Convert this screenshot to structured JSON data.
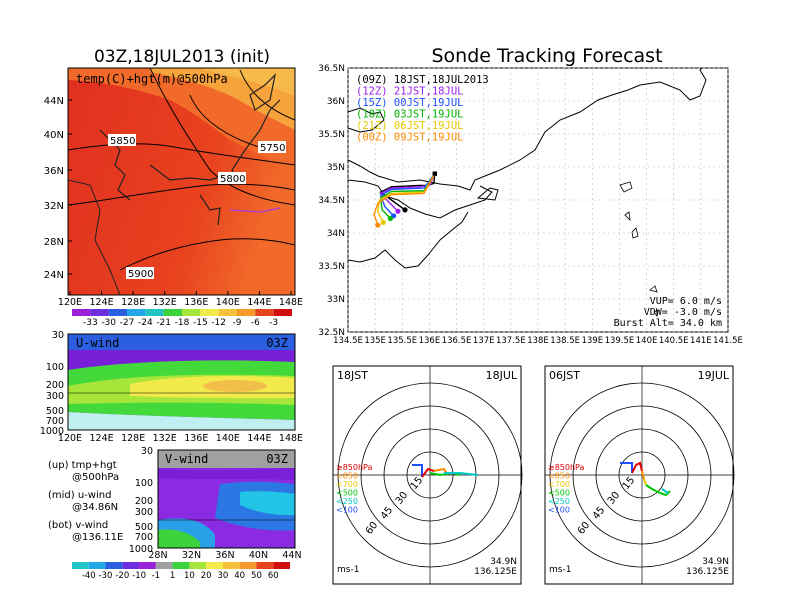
{
  "main_title": "Sonde Tracking Forecast",
  "left_title": "03Z,18JUL2013 (init)",
  "colors": {
    "land_hot": "#e8321e",
    "warm": "#f26a2a",
    "orange": "#f5a33a",
    "blue_top": "#2b5fe0",
    "purple": "#8a2be2",
    "cyan": "#22c4e6",
    "green": "#3cd23c"
  },
  "panel_a": {
    "label": "temp(C)+hgt(m)@500hPa",
    "contours": [
      "5850",
      "5750",
      "5800",
      "5900"
    ],
    "yticks": [
      "44N",
      "40N",
      "36N",
      "32N",
      "28N",
      "24N"
    ],
    "xticks": [
      "120E",
      "124E",
      "128E",
      "132E",
      "136E",
      "140E",
      "144E",
      "148E"
    ],
    "colorbar": [
      "-33",
      "-30",
      "-27",
      "-24",
      "-21",
      "-18",
      "-15",
      "-12",
      "-9",
      "-6",
      "-3"
    ]
  },
  "panel_u": {
    "label": "U-wind",
    "time": "03Z",
    "yticks": [
      "30",
      "100",
      "200",
      "300",
      "500",
      "700",
      "1000"
    ],
    "xticks": [
      "120E",
      "124E",
      "128E",
      "132E",
      "136E",
      "140E",
      "144E",
      "148E"
    ]
  },
  "panel_v": {
    "label": "V-wind",
    "time": "03Z",
    "yticks": [
      "30",
      "100",
      "200",
      "300",
      "500",
      "700",
      "1000"
    ],
    "xticks": [
      "28N",
      "32N",
      "36N",
      "40N",
      "44N"
    ],
    "colorbar": [
      "-40",
      "-30",
      "-20",
      "-10",
      "-1",
      "1",
      "10",
      "20",
      "30",
      "40",
      "50",
      "60"
    ]
  },
  "legend_notes": [
    [
      "(up) tmp+hgt",
      "@500hPa"
    ],
    [
      "(mid) u-wind",
      "@34.86N"
    ],
    [
      "(bot) v-wind",
      "@136.11E"
    ]
  ],
  "tracking": {
    "legend": [
      {
        "text": "(09Z)  18JST,18JUL2013",
        "color": "#000000"
      },
      {
        "text": "(12Z)  21JST,18JUL",
        "color": "#a020f0"
      },
      {
        "text": "(15Z)  00JST,19JUL",
        "color": "#1e50ff"
      },
      {
        "text": "(18Z)  03JST,19JUL",
        "color": "#00b400"
      },
      {
        "text": "(21Z)  06JST,19JUL",
        "color": "#e6c800"
      },
      {
        "text": "(00Z)  09JST,19JUL",
        "color": "#ff8c00"
      }
    ],
    "yticks": [
      "36.5N",
      "36N",
      "35.5N",
      "35N",
      "34.5N",
      "34N",
      "33.5N",
      "33N",
      "32.5N"
    ],
    "xticks": [
      "134.5E",
      "135E",
      "135.5E",
      "136E",
      "136.5E",
      "137E",
      "137.5E",
      "138E",
      "138.5E",
      "139E",
      "139.5E",
      "140E",
      "140.5E",
      "141E",
      "141.5E"
    ],
    "params": [
      "VUP=  6.0  m/s",
      "VDW= -3.0  m/s",
      "Burst Alt=  34.0  km"
    ]
  },
  "hodo1": {
    "time": "18JST",
    "date": "18JUL",
    "rings": [
      "15",
      "30",
      "45",
      "60"
    ],
    "unit": "ms-1",
    "lat": "34.9N",
    "lon": "136.125E",
    "levels": [
      {
        "t": "≥850hPa",
        "c": "#e00000"
      },
      {
        "t": "<850",
        "c": "#ff8c00"
      },
      {
        "t": "<700",
        "c": "#e6c800"
      },
      {
        "t": "<500",
        "c": "#00c800"
      },
      {
        "t": "<250",
        "c": "#00c8c8"
      },
      {
        "t": "<100",
        "c": "#1e50ff"
      }
    ]
  },
  "hodo2": {
    "time": "06JST",
    "date": "19JUL",
    "rings": [
      "15",
      "30",
      "45",
      "60"
    ],
    "unit": "ms-1",
    "lat": "34.9N",
    "lon": "136.125E",
    "levels": [
      {
        "t": "≥850hPa",
        "c": "#e00000"
      },
      {
        "t": "<850",
        "c": "#ff8c00"
      },
      {
        "t": "<700",
        "c": "#e6c800"
      },
      {
        "t": "<500",
        "c": "#00c800"
      },
      {
        "t": "<250",
        "c": "#00c8c8"
      },
      {
        "t": "<100",
        "c": "#1e50ff"
      }
    ]
  },
  "chart_data": [
    {
      "type": "heatmap",
      "title": "03Z,18JUL2013 (init)",
      "annotation": "temp(C)+hgt(m)@500hPa",
      "x_ticks": [
        "120E",
        "124E",
        "128E",
        "132E",
        "136E",
        "140E",
        "144E",
        "148E"
      ],
      "y_ticks": [
        "24N",
        "28N",
        "32N",
        "36N",
        "40N",
        "44N"
      ],
      "colorbar": [
        -33,
        -30,
        -27,
        -24,
        -21,
        -18,
        -15,
        -12,
        -9,
        -6,
        -3
      ],
      "contour_labels": [
        5750,
        5800,
        5850,
        5900
      ]
    },
    {
      "type": "heatmap",
      "annotation": "U-wind 03Z",
      "x_ticks": [
        "120E",
        "124E",
        "128E",
        "132E",
        "136E",
        "140E",
        "144E",
        "148E"
      ],
      "y_ticks": [
        30,
        100,
        200,
        300,
        500,
        700,
        1000
      ]
    },
    {
      "type": "heatmap",
      "annotation": "V-wind 03Z",
      "x_ticks": [
        "28N",
        "32N",
        "36N",
        "40N",
        "44N"
      ],
      "y_ticks": [
        30,
        100,
        200,
        300,
        500,
        700,
        1000
      ],
      "colorbar": [
        -40,
        -30,
        -20,
        -10,
        -1,
        1,
        10,
        20,
        30,
        40,
        50,
        60
      ]
    },
    {
      "type": "line",
      "title": "Sonde Tracking Forecast",
      "x_range": [
        134.5,
        141.5
      ],
      "y_range": [
        32.5,
        36.5
      ],
      "series": [
        {
          "name": "(09Z) 18JST,18JUL2013",
          "x": [
            136.1,
            136.08,
            135.95,
            135.8,
            135.3,
            135.1,
            135.3,
            135.55
          ],
          "y": [
            34.9,
            34.75,
            34.72,
            34.72,
            34.7,
            34.62,
            34.5,
            34.35
          ]
        },
        {
          "name": "(12Z) 21JST,18JUL",
          "x": [
            136.1,
            136.0,
            135.8,
            135.3,
            135.1,
            135.25,
            135.42
          ],
          "y": [
            34.9,
            34.72,
            34.7,
            34.68,
            34.6,
            34.47,
            34.33
          ]
        },
        {
          "name": "(15Z) 00JST,19JUL",
          "x": [
            136.1,
            135.9,
            135.3,
            135.1,
            135.18,
            135.34
          ],
          "y": [
            34.9,
            34.68,
            34.66,
            34.57,
            34.4,
            34.26
          ]
        },
        {
          "name": "(18Z) 03JST,19JUL",
          "x": [
            136.1,
            135.9,
            135.3,
            135.1,
            135.13,
            135.28
          ],
          "y": [
            34.9,
            34.64,
            34.63,
            34.53,
            34.35,
            34.22
          ]
        },
        {
          "name": "(21Z) 06JST,19JUL",
          "x": [
            136.1,
            135.9,
            135.3,
            135.08,
            135.05,
            135.15
          ],
          "y": [
            34.9,
            34.62,
            34.6,
            34.5,
            34.32,
            34.16
          ]
        },
        {
          "name": "(00Z) 09JST,19JUL",
          "x": [
            136.1,
            135.9,
            135.3,
            135.05,
            134.98,
            135.05
          ],
          "y": [
            34.9,
            34.6,
            34.58,
            34.45,
            34.28,
            34.12
          ]
        }
      ],
      "annotations": [
        "VUP= 6.0 m/s",
        "VDW= -3.0 m/s",
        "Burst Alt= 34.0 km"
      ]
    },
    {
      "type": "line",
      "title": "18JST 18JUL",
      "rings": [
        15,
        30,
        45,
        60
      ],
      "x_unit": "ms-1"
    },
    {
      "type": "line",
      "title": "06JST 19JUL",
      "rings": [
        15,
        30,
        45,
        60
      ],
      "x_unit": "ms-1"
    }
  ]
}
